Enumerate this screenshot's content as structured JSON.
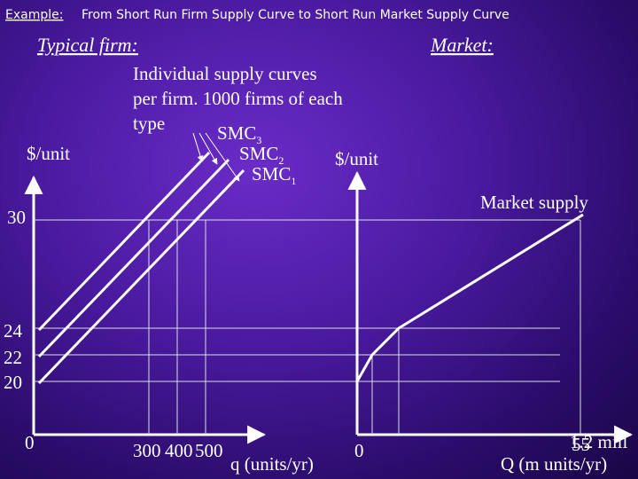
{
  "header": {
    "label": "Example:",
    "title": "From Short Run Firm Supply Curve to Short Run Market Supply Curve"
  },
  "firm": {
    "heading": "Typical firm:",
    "note": [
      "Individual supply curves",
      "per firm. 1000 firms of each",
      "type"
    ],
    "curves": [
      {
        "text": "SMC",
        "sub": "3"
      },
      {
        "text": "SMC",
        "sub": "2"
      },
      {
        "text": "SMC",
        "sub": "1"
      }
    ],
    "y_label": "$/unit",
    "y_ticks": [
      "30",
      "24",
      "22",
      "20",
      "0"
    ],
    "x_ticks": [
      "300",
      "400",
      "500"
    ],
    "x_label": "q (units/yr)"
  },
  "market": {
    "heading": "Market:",
    "y_label": "$/unit",
    "curve_label": "Market supply",
    "origin": "0",
    "x_tick": "1.2 mill",
    "x_tick_overlap": "55",
    "x_label": "Q (m units/yr)"
  }
}
